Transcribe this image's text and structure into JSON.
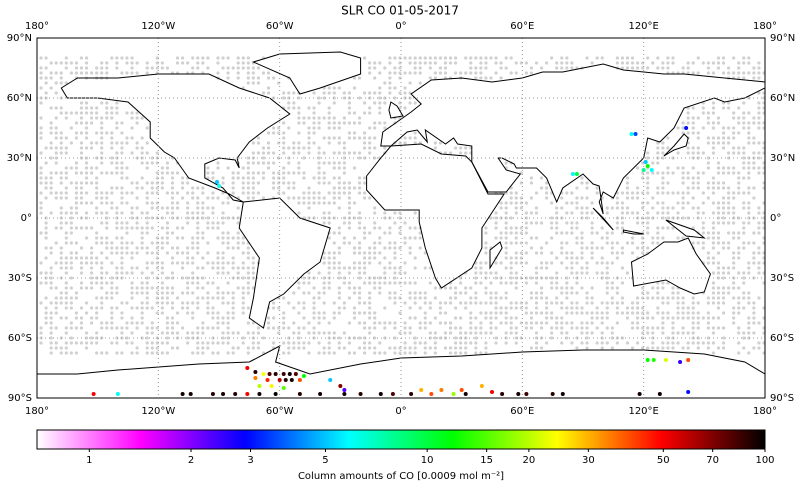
{
  "title": "SLR CO 01-05-2017",
  "map": {
    "xlim": [
      -180,
      180
    ],
    "ylim": [
      -90,
      90
    ],
    "grid": true,
    "xticks": [
      {
        "value": -180,
        "label": "180°"
      },
      {
        "value": -120,
        "label": "120°W"
      },
      {
        "value": -60,
        "label": "60°W"
      },
      {
        "value": 0,
        "label": "0°"
      },
      {
        "value": 60,
        "label": "60°E"
      },
      {
        "value": 120,
        "label": "120°E"
      },
      {
        "value": 180,
        "label": "180°"
      }
    ],
    "yticks": [
      {
        "value": 90,
        "label": "90°N"
      },
      {
        "value": 60,
        "label": "60°N"
      },
      {
        "value": 30,
        "label": "30°N"
      },
      {
        "value": 0,
        "label": "0°"
      },
      {
        "value": -30,
        "label": "30°S"
      },
      {
        "value": -60,
        "label": "60°S"
      },
      {
        "value": -90,
        "label": "90°S"
      }
    ],
    "lon": [
      114,
      116,
      121,
      122,
      120,
      124,
      141,
      85,
      87,
      -90,
      -91,
      122,
      125,
      131,
      138,
      142,
      -76,
      -72,
      -68,
      -65,
      -62,
      -58,
      -55,
      -52,
      -48,
      -72,
      -66,
      -60,
      -57,
      -54,
      -50,
      -70,
      -64,
      -58,
      -35,
      -30,
      -28,
      10,
      20,
      30,
      40,
      45,
      -152,
      -140,
      -108,
      -104,
      -93,
      -88,
      -82,
      -76,
      -70,
      -62,
      -50,
      -40,
      -28,
      -20,
      -10,
      -4,
      5,
      15,
      26,
      32,
      50,
      58,
      62,
      75,
      80,
      118,
      128,
      142
    ],
    "lat": [
      42,
      42,
      28,
      26,
      24,
      24,
      45,
      22,
      22,
      16,
      18,
      -71,
      -71,
      -71,
      -72,
      -71,
      -75,
      -77,
      -78,
      -78,
      -78,
      -78,
      -78,
      -78,
      -79,
      -80,
      -81,
      -81,
      -81,
      -81,
      -81,
      -84,
      -84,
      -85,
      -81,
      -84,
      -86,
      -86,
      -86,
      -86,
      -84,
      -87,
      -88,
      -88,
      -88,
      -88,
      -88,
      -88,
      -88,
      -88,
      -88,
      -88,
      -88,
      -88,
      -88,
      -88,
      -88,
      -88,
      -88,
      -88,
      -88,
      -88,
      -88,
      -88,
      -88,
      -88,
      -88,
      -88,
      -88,
      -87
    ],
    "values": [
      6,
      3.5,
      5,
      12,
      8,
      6,
      3,
      6,
      10,
      6,
      5,
      12,
      13,
      22,
      2.5,
      40,
      50,
      90,
      24,
      80,
      90,
      85,
      95,
      80,
      12,
      35,
      45,
      60,
      90,
      95,
      40,
      20,
      25,
      15,
      5,
      70,
      2.3,
      30,
      35,
      40,
      30,
      50,
      50,
      6,
      95,
      95,
      90,
      95,
      90,
      50,
      95,
      100,
      90,
      95,
      95,
      90,
      95,
      80,
      90,
      40,
      18,
      95,
      90,
      95,
      85,
      90,
      95,
      95,
      95,
      3
    ]
  },
  "colorbar": {
    "label": "Column amounts of CO [0.0009 mol m⁻²]",
    "lim": [
      0.7,
      100
    ],
    "log": true,
    "ticks": [
      1,
      2,
      3,
      5,
      10,
      15,
      20,
      30,
      50,
      70,
      100
    ],
    "colormap": [
      "#ffffff",
      "#ff00ff",
      "#0000ff",
      "#00ffff",
      "#00ff00",
      "#ffff00",
      "#ff0000",
      "#000000"
    ]
  }
}
